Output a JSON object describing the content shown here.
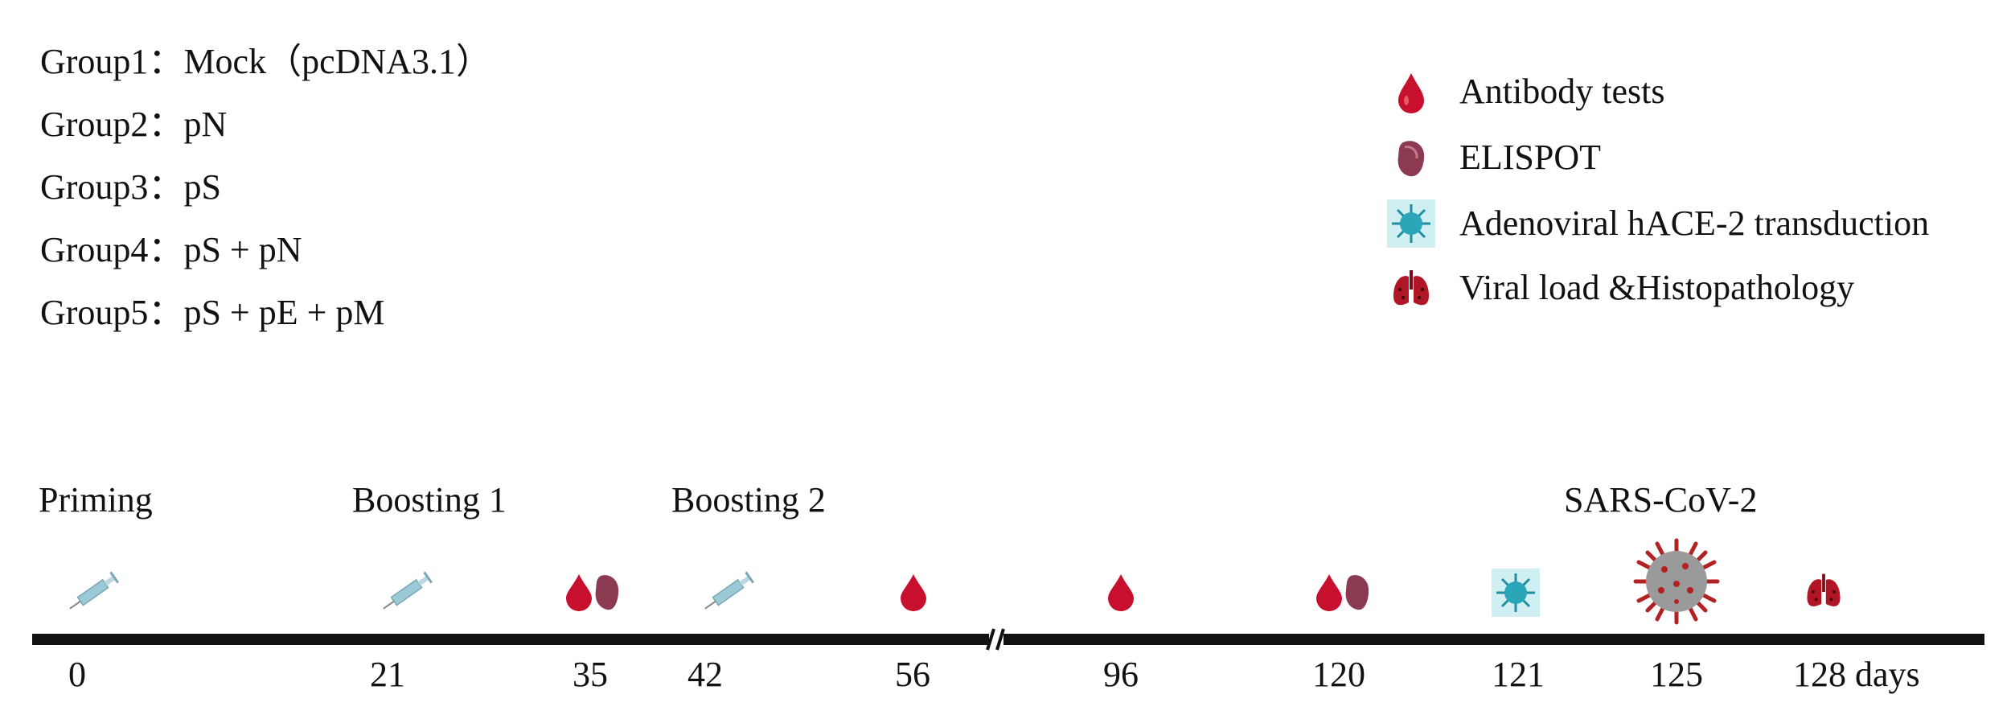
{
  "groups": [
    {
      "label": "Group1：",
      "treatment": "Mock（pcDNA3.1）"
    },
    {
      "label": "Group2：",
      "treatment": "pN"
    },
    {
      "label": "Group3：",
      "treatment": "pS"
    },
    {
      "label": "Group4：",
      "treatment": "pS + pN"
    },
    {
      "label": "Group5：",
      "treatment": "pS + pE + pM"
    }
  ],
  "legend": [
    {
      "icon": "blood-drop-icon",
      "text": "Antibody tests"
    },
    {
      "icon": "spleen-icon",
      "text": "ELISPOT"
    },
    {
      "icon": "virus-particle-icon",
      "text": "Adenoviral hACE-2 transduction"
    },
    {
      "icon": "lungs-icon",
      "text": "Viral load &Histopathology"
    }
  ],
  "phases": {
    "priming": "Priming",
    "boosting1": "Boosting 1",
    "boosting2": "Boosting 2",
    "challenge": "SARS-CoV-2"
  },
  "days": [
    "0",
    "21",
    "35",
    "42",
    "56",
    "96",
    "120",
    "121",
    "125",
    "128 days"
  ],
  "colors": {
    "blood": "#c8102e",
    "spleen": "#8b3a52",
    "virus": "#2aa6b8",
    "virus_bg": "#cfeff3",
    "syringe": "#9cc9d8",
    "timeline": "#111111"
  }
}
